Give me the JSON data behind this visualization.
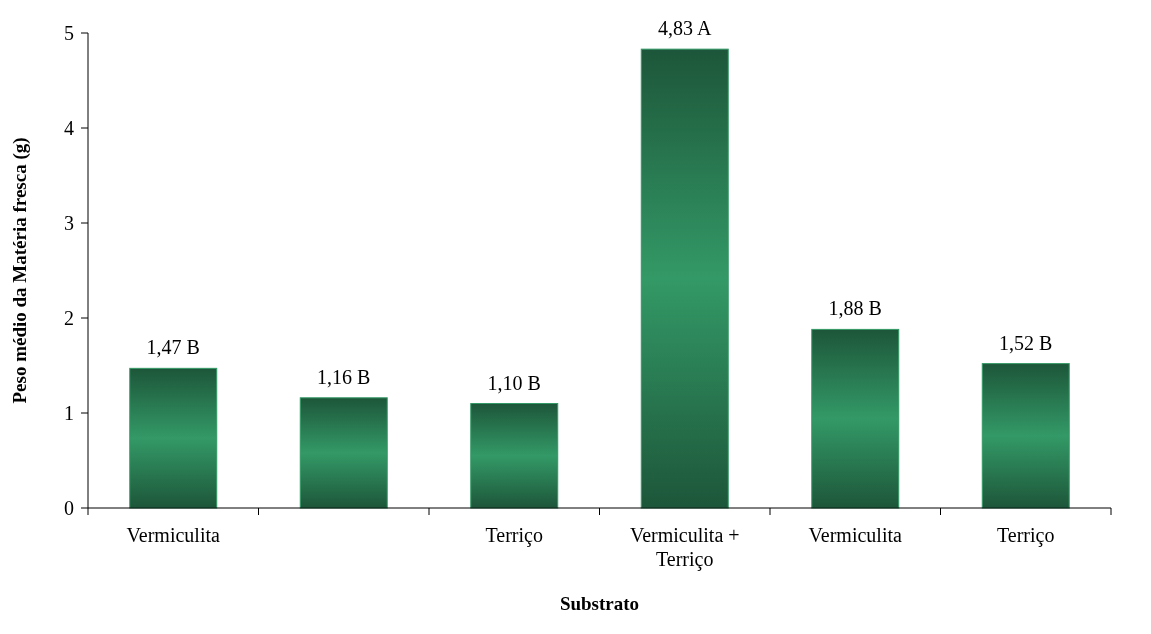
{
  "chart_data": {
    "type": "bar",
    "xlabel": "Substrato",
    "ylabel": "Peso médio da Matéria fresca (g)",
    "categories": [
      "Vermiculita",
      null,
      "Terriço",
      "Vermiculita + Terriço",
      "Vermiculita",
      "Terriço"
    ],
    "values": [
      1.47,
      1.16,
      1.1,
      4.83,
      1.88,
      1.52
    ],
    "value_labels": [
      "1,47 B",
      "1,16 B",
      "1,10 B",
      "4,83 A",
      "1,88 B",
      "1,52 B"
    ],
    "color": "#339966",
    "ylim": [
      0,
      5
    ],
    "yticks": [
      0,
      1,
      2,
      3,
      4,
      5
    ],
    "grid": false
  }
}
